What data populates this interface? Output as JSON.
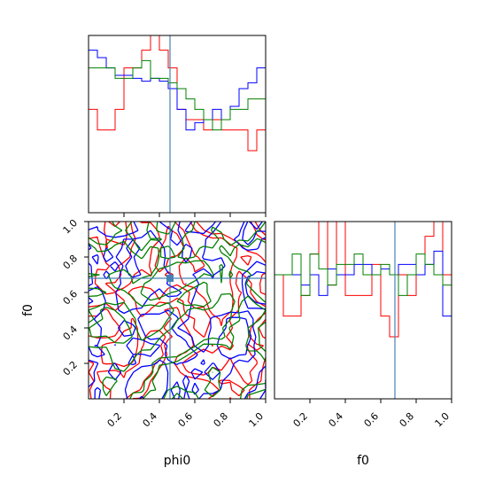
{
  "chart_data": {
    "type": "corner",
    "parameters": [
      "phi0",
      "f0"
    ],
    "truth": {
      "phi0": 0.46,
      "f0": 0.68
    },
    "truth_color": "#4682b4",
    "series_colors": {
      "red": "#ff0000",
      "blue": "#0000ff",
      "green": "#008000"
    },
    "axis_ranges": {
      "phi0": [
        0,
        1
      ],
      "f0": [
        0,
        1
      ]
    },
    "x_ticks": [
      "0.2",
      "0.4",
      "0.6",
      "0.8",
      "1.0"
    ],
    "y_ticks": [
      "0.2",
      "0.4",
      "0.6",
      "0.8",
      "1.0"
    ],
    "xlabel_left": "phi0",
    "xlabel_right": "f0",
    "ylabel": "f0",
    "hist_phi0": {
      "bins": 20,
      "ylim": [
        0,
        1.2
      ],
      "red": [
        0.7,
        0.56,
        0.56,
        0.7,
        0.98,
        0.98,
        1.1,
        1.2,
        1.1,
        0.98,
        0.7,
        0.63,
        0.63,
        0.56,
        0.63,
        0.56,
        0.56,
        0.56,
        0.42,
        0.56
      ],
      "blue": [
        1.1,
        1.05,
        0.98,
        0.93,
        0.93,
        0.91,
        0.89,
        0.91,
        0.89,
        0.84,
        0.7,
        0.56,
        0.61,
        0.63,
        0.7,
        0.63,
        0.72,
        0.84,
        0.88,
        0.98
      ],
      "green": [
        0.98,
        0.98,
        0.98,
        0.91,
        0.91,
        0.98,
        1.03,
        0.91,
        0.91,
        0.88,
        0.84,
        0.77,
        0.7,
        0.63,
        0.56,
        0.63,
        0.7,
        0.7,
        0.77,
        0.77
      ]
    },
    "hist_f0": {
      "bins": 20,
      "ylim": [
        0,
        1.2
      ],
      "red": [
        0.84,
        0.56,
        0.56,
        0.7,
        0.98,
        1.2,
        0.77,
        1.2,
        0.7,
        0.7,
        0.7,
        0.91,
        0.56,
        0.42,
        0.84,
        0.7,
        0.84,
        1.1,
        1.2,
        0.84
      ],
      "blue": [
        0.84,
        0.84,
        0.84,
        0.77,
        0.84,
        0.7,
        0.88,
        0.84,
        0.84,
        0.91,
        0.91,
        0.84,
        0.88,
        0.84,
        0.91,
        0.91,
        0.84,
        0.91,
        1.0,
        0.56
      ],
      "green": [
        0.84,
        0.84,
        0.98,
        0.7,
        0.98,
        0.88,
        0.77,
        0.91,
        0.91,
        0.98,
        0.84,
        0.84,
        0.91,
        0.84,
        0.7,
        0.84,
        0.98,
        0.91,
        0.84,
        0.77
      ]
    }
  }
}
